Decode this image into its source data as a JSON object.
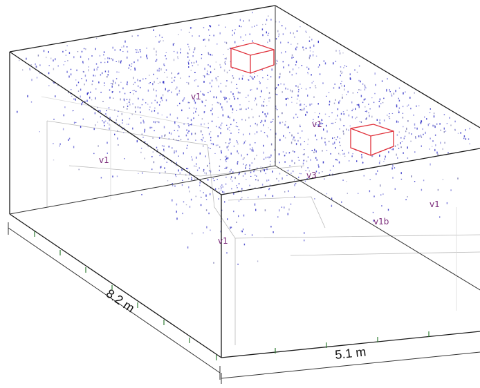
{
  "dimensions": {
    "depth_label": "8.2 m",
    "width_label": "5.1 m"
  },
  "zones": [
    {
      "id": "z1",
      "label": "v1"
    },
    {
      "id": "z2",
      "label": "v1"
    },
    {
      "id": "z3",
      "label": "v1"
    },
    {
      "id": "z4",
      "label": "v3"
    },
    {
      "id": "z5",
      "label": "v1"
    },
    {
      "id": "z6",
      "label": "v1b"
    },
    {
      "id": "z7",
      "label": "v1"
    }
  ],
  "colors": {
    "point_cloud": "#3a3ac8",
    "box_outline": "#e0303a",
    "zone_label": "#7a2a7a",
    "tick": "#2e7d32",
    "edge": "#1a1a1a"
  },
  "objects": [
    {
      "id": "sensor-box-1"
    },
    {
      "id": "sensor-box-2"
    }
  ]
}
